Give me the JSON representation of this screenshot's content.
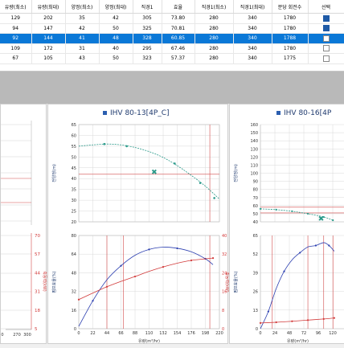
{
  "table": {
    "headers": [
      "유량(최소)",
      "유량(최대)",
      "양정(최소)",
      "양정(최대)",
      "직경1",
      "효율",
      "직경1(최소)",
      "직경1(최대)",
      "분당 회전수",
      "선택"
    ],
    "rows": [
      {
        "cells": [
          "129",
          "202",
          "35",
          "42",
          "305",
          "73.80",
          "280",
          "340",
          "1780"
        ],
        "checked": true,
        "selected": false
      },
      {
        "cells": [
          "94",
          "147",
          "42",
          "50",
          "325",
          "70.81",
          "280",
          "340",
          "1780"
        ],
        "checked": true,
        "selected": false
      },
      {
        "cells": [
          "92",
          "144",
          "41",
          "48",
          "328",
          "60.85",
          "280",
          "340",
          "1788"
        ],
        "checked": false,
        "selected": true
      },
      {
        "cells": [
          "109",
          "172",
          "31",
          "40",
          "295",
          "67.46",
          "280",
          "340",
          "1780"
        ],
        "checked": false,
        "selected": false
      },
      {
        "cells": [
          "67",
          "105",
          "43",
          "50",
          "323",
          "57.37",
          "280",
          "340",
          "1775"
        ],
        "checked": false,
        "selected": false
      }
    ]
  },
  "colors": {
    "selection": "#0a78d7",
    "series_blue": "#2c3fb0",
    "series_teal": "#2a9a8a",
    "series_red": "#d23a3a",
    "ref_line": "#d24a4a"
  },
  "left_panel": {
    "top_ticks_right": [],
    "bottom_ticks_right": [
      "70",
      "57",
      "44",
      "31",
      "18",
      "5"
    ],
    "bottom_axis_label_right": "축동력(kW)",
    "x_ticks": [
      "0",
      "270",
      "300"
    ]
  },
  "mid_panel": {
    "title": "IHV 80-13[4P_C]",
    "top_y_label": "전양정(m)",
    "top_y_ticks": [
      "65",
      "60",
      "55",
      "50",
      "45",
      "40",
      "35",
      "30",
      "25",
      "20"
    ],
    "bottom_y_label": "펌프효율(%)",
    "bottom_y_ticks": [
      "80",
      "64",
      "48",
      "32",
      "16",
      "0"
    ],
    "bottom_y_right_label": "축동력(kW)",
    "bottom_y_right_ticks": [
      "40",
      "32",
      "24",
      "16",
      "8",
      "0"
    ],
    "x_ticks": [
      "0",
      "22",
      "44",
      "66",
      "88",
      "110",
      "132",
      "154",
      "176",
      "198",
      "220"
    ],
    "x_label": "유량(m³/hr)"
  },
  "right_panel": {
    "title": "IHV 80-16[4P",
    "top_y_label": "전양정(m)",
    "top_y_ticks": [
      "160",
      "150",
      "140",
      "130",
      "120",
      "110",
      "100",
      "90",
      "80",
      "70",
      "60",
      "50",
      "40"
    ],
    "bottom_y_label": "펌프효율(%)",
    "bottom_y_ticks": [
      "65",
      "52",
      "39",
      "26",
      "13",
      "0"
    ],
    "x_ticks": [
      "0",
      "24",
      "48",
      "72",
      "96",
      "120"
    ],
    "x_label": "유량(m³/hr)"
  },
  "chart_data": [
    {
      "type": "line",
      "title": "IHV 80-13[4P_C]",
      "xlabel": "유량(m³/hr)",
      "ylabel": "전양정(m)",
      "xlim": [
        0,
        220
      ],
      "ylim": [
        20,
        65
      ],
      "series": [
        {
          "x": [
            0,
            22,
            44,
            66,
            88,
            110,
            132,
            154,
            176,
            198,
            220
          ],
          "values": [
            55.0,
            55.6,
            56.0,
            55.6,
            54.4,
            52.5,
            49.8,
            46.0,
            41.5,
            36.5,
            30.5
          ]
        }
      ],
      "points": [
        {
          "x": 40,
          "y": 56
        },
        {
          "x": 75,
          "y": 55
        },
        {
          "x": 150,
          "y": 47
        },
        {
          "x": 190,
          "y": 38
        },
        {
          "x": 212,
          "y": 31
        }
      ],
      "operating_point": {
        "x": 118,
        "y": 43
      },
      "ref_lines_x": [],
      "ref_lines_y": [
        42
      ]
    },
    {
      "type": "line",
      "xlabel": "유량(m³/hr)",
      "ylabel": "펌프효율(%)",
      "y2label": "축동력(kW)",
      "xlim": [
        0,
        220
      ],
      "ylim": [
        0,
        80
      ],
      "y2lim": [
        0,
        40
      ],
      "series": [
        {
          "axis": "y",
          "x": [
            0,
            22,
            44,
            66,
            88,
            110,
            132,
            154,
            176,
            198,
            210
          ],
          "values": [
            2,
            24,
            42,
            54,
            63,
            68,
            70,
            69,
            66,
            60,
            55
          ]
        },
        {
          "axis": "y2",
          "x": [
            0,
            22,
            44,
            66,
            88,
            110,
            132,
            154,
            176,
            198,
            210
          ],
          "values": [
            12.5,
            15.3,
            18.0,
            20.3,
            22.4,
            24.6,
            26.5,
            28.1,
            29.3,
            30.0,
            30.3
          ]
        }
      ],
      "ref_lines_x": [
        44,
        70,
        205
      ]
    },
    {
      "type": "line",
      "title": "IHV 80-16[4P",
      "xlabel": "유량(m³/hr)",
      "ylabel": "전양정(m)",
      "xlim": [
        0,
        128
      ],
      "ylim": [
        40,
        160
      ],
      "series": [
        {
          "x": [
            0,
            24,
            48,
            72,
            96,
            110
          ],
          "values": [
            56,
            55,
            53,
            50,
            46,
            42
          ]
        }
      ],
      "operating_point": {
        "x": 92,
        "y": 44
      },
      "ref_lines_x": [],
      "ref_lines_y": [
        58,
        51
      ]
    },
    {
      "type": "line",
      "xlabel": "유량(m³/hr)",
      "ylabel": "펌프효율(%)",
      "xlim": [
        0,
        128
      ],
      "ylim": [
        0,
        65
      ],
      "series": [
        {
          "axis": "y",
          "x": [
            0,
            12,
            24,
            36,
            48,
            60,
            72,
            84,
            96,
            104,
            112
          ],
          "values": [
            0,
            12,
            28,
            40,
            48,
            53,
            57,
            58,
            60,
            58,
            54
          ]
        },
        {
          "axis": "y2",
          "x": [
            0,
            24,
            48,
            72,
            96,
            112
          ],
          "values": [
            4,
            4.5,
            5.2,
            6.0,
            6.8,
            7.5
          ]
        }
      ],
      "ref_lines_x": [
        18,
        72,
        96,
        110
      ]
    }
  ]
}
